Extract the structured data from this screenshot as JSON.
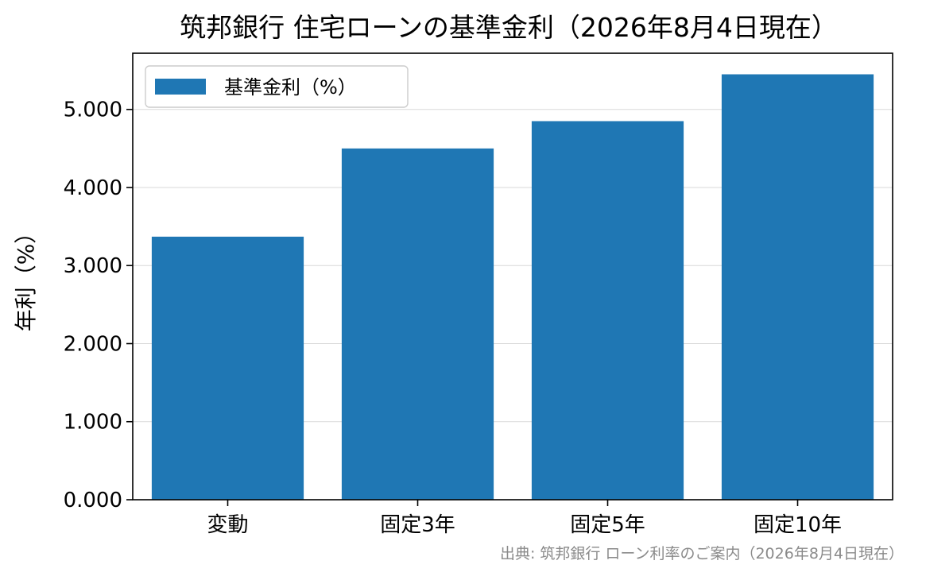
{
  "chart_data": {
    "type": "bar",
    "title": "筑邦銀行 住宅ローンの基準金利（2026年8月4日現在）",
    "xlabel": "",
    "ylabel": "年利（%）",
    "categories": [
      "変動",
      "固定3年",
      "固定5年",
      "固定10年"
    ],
    "series": [
      {
        "name": "基準金利（%）",
        "values": [
          3.37,
          4.5,
          4.85,
          5.45
        ]
      }
    ],
    "ylim": [
      0,
      5.72
    ],
    "yticks": [
      "0.000",
      "1.000",
      "2.000",
      "3.000",
      "4.000",
      "5.000"
    ],
    "grid": "y",
    "legend_position": "upper-left",
    "bar_color": "#1f77b4",
    "source": "出典: 筑邦銀行 ローン利率のご案内（2026年8月4日現在）"
  }
}
